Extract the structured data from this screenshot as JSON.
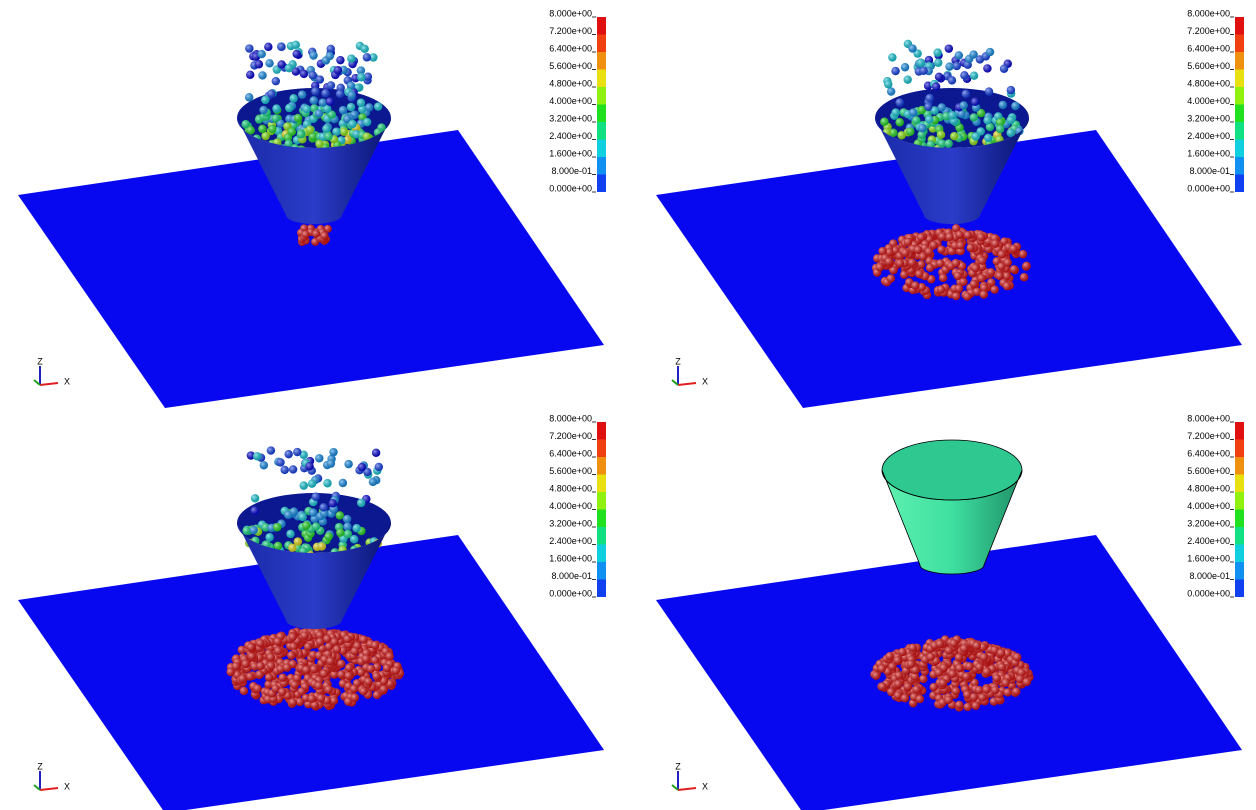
{
  "panels": [
    {
      "colorbar": {
        "labels": [
          "8.000e+00",
          "7.200e+00",
          "6.400e+00",
          "5.600e+00",
          "4.800e+00",
          "4.000e+00",
          "3.200e+00",
          "2.400e+00",
          "1.600e+00",
          "8.000e-01",
          "0.000e+00"
        ]
      },
      "axes": {
        "z": "Z",
        "x": "X"
      }
    },
    {
      "colorbar": {
        "labels": [
          "8.000e+00",
          "7.200e+00",
          "6.400e+00",
          "5.600e+00",
          "4.800e+00",
          "4.000e+00",
          "3.200e+00",
          "2.400e+00",
          "1.600e+00",
          "8.000e-01",
          "0.000e+00"
        ]
      },
      "axes": {
        "z": "Z",
        "x": "X"
      }
    },
    {
      "colorbar": {
        "labels": [
          "8.000e+00",
          "7.200e+00",
          "6.400e+00",
          "5.600e+00",
          "4.800e+00",
          "4.000e+00",
          "3.200e+00",
          "2.400e+00",
          "1.600e+00",
          "8.000e-01",
          "0.000e+00"
        ]
      },
      "axes": {
        "z": "Z",
        "x": "X"
      }
    },
    {
      "colorbar": {
        "labels": [
          "8.000e+00",
          "7.200e+00",
          "6.400e+00",
          "5.600e+00",
          "4.800e+00",
          "4.000e+00",
          "3.200e+00",
          "2.400e+00",
          "1.600e+00",
          "8.000e-01",
          "0.000e+00"
        ]
      },
      "axes": {
        "z": "Z",
        "x": "X"
      }
    }
  ]
}
